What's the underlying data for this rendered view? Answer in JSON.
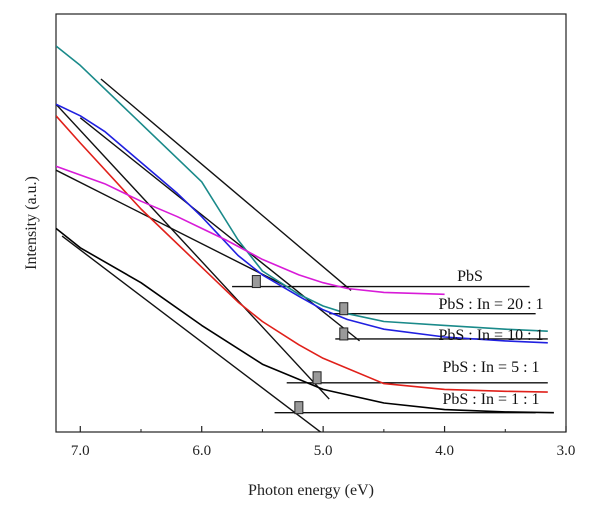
{
  "chart_data": {
    "type": "line",
    "title": "",
    "xlabel": "Photon energy (eV)",
    "ylabel": "Intensity (a.u.)",
    "xlim": [
      7.2,
      3.0
    ],
    "ylim": [
      0,
      1
    ],
    "x_ticks": [
      "7.0",
      "6.0",
      "5.0",
      "4.0",
      "3.0"
    ],
    "grid": false,
    "series": [
      {
        "name": "PbS : In = 1 : 1",
        "color": "#000000",
        "x": [
          7.2,
          7.0,
          6.5,
          6.0,
          5.5,
          5.0,
          4.5,
          4.0,
          3.5,
          3.1
        ],
        "y": [
          0.53,
          0.48,
          0.39,
          0.28,
          0.18,
          0.115,
          0.08,
          0.063,
          0.057,
          0.055
        ],
        "fit_line": {
          "x": [
            7.15,
            5.0
          ],
          "y": [
            0.51,
            0.0
          ]
        },
        "baseline": {
          "x": [
            5.4,
            3.25
          ],
          "y": [
            0.055,
            0.055
          ]
        },
        "intercept_eV": 5.2,
        "intercept_y": 0.055
      },
      {
        "name": "PbS : In = 5 : 1",
        "color": "#e0201a",
        "x": [
          7.2,
          7.0,
          6.5,
          6.0,
          5.7,
          5.5,
          5.2,
          5.0,
          4.5,
          4.0,
          3.5,
          3.15
        ],
        "y": [
          0.82,
          0.75,
          0.58,
          0.43,
          0.34,
          0.29,
          0.23,
          0.195,
          0.13,
          0.115,
          0.11,
          0.108
        ],
        "fit_line": {
          "x": [
            7.2,
            4.95
          ],
          "y": [
            0.85,
            0.09
          ]
        },
        "baseline": {
          "x": [
            5.3,
            3.15
          ],
          "y": [
            0.132,
            0.132
          ]
        },
        "intercept_eV": 5.05,
        "intercept_y": 0.132
      },
      {
        "name": "PbS : In = 10 : 1",
        "color": "#2020e0",
        "x": [
          7.2,
          7.0,
          6.8,
          6.5,
          6.2,
          6.0,
          5.7,
          5.5,
          5.2,
          5.0,
          4.8,
          4.5,
          4.0,
          3.5,
          3.15
        ],
        "y": [
          0.85,
          0.82,
          0.78,
          0.7,
          0.62,
          0.56,
          0.46,
          0.41,
          0.355,
          0.32,
          0.295,
          0.27,
          0.25,
          0.24,
          0.235
        ],
        "fit_line": {
          "x": [
            7.0,
            4.7
          ],
          "y": [
            0.815,
            0.24
          ]
        },
        "baseline": {
          "x": [
            4.9,
            3.15
          ],
          "y": [
            0.245,
            0.245
          ]
        },
        "intercept_eV": 4.83,
        "intercept_y": 0.245
      },
      {
        "name": "PbS : In = 20 : 1",
        "color": "#1a8a8a",
        "x": [
          7.2,
          7.0,
          6.5,
          6.0,
          5.7,
          5.5,
          5.2,
          5.0,
          4.8,
          4.5,
          4.0,
          3.5,
          3.15
        ],
        "y": [
          1.0,
          0.95,
          0.8,
          0.65,
          0.5,
          0.42,
          0.36,
          0.33,
          0.31,
          0.29,
          0.28,
          0.27,
          0.265
        ],
        "fit_line": {
          "x": [
            6.83,
            4.77
          ],
          "y": [
            0.915,
            0.37
          ]
        },
        "baseline": {
          "x": [
            4.95,
            3.25
          ],
          "y": [
            0.31,
            0.31
          ]
        },
        "intercept_eV": 4.83,
        "intercept_y": 0.31
      },
      {
        "name": "PbS",
        "color": "#d81bd8",
        "x": [
          7.2,
          6.8,
          6.5,
          6.2,
          6.0,
          5.8,
          5.5,
          5.2,
          5.0,
          4.8,
          4.5,
          4.0
        ],
        "y": [
          0.69,
          0.645,
          0.6,
          0.56,
          0.53,
          0.5,
          0.45,
          0.41,
          0.39,
          0.375,
          0.365,
          0.36
        ],
        "fit_line": {
          "x": [
            7.2,
            5.3
          ],
          "y": [
            0.68,
            0.38
          ]
        },
        "baseline": {
          "x": [
            5.75,
            3.3
          ],
          "y": [
            0.38,
            0.38
          ]
        },
        "intercept_eV": 5.55,
        "intercept_y": 0.38
      }
    ]
  }
}
